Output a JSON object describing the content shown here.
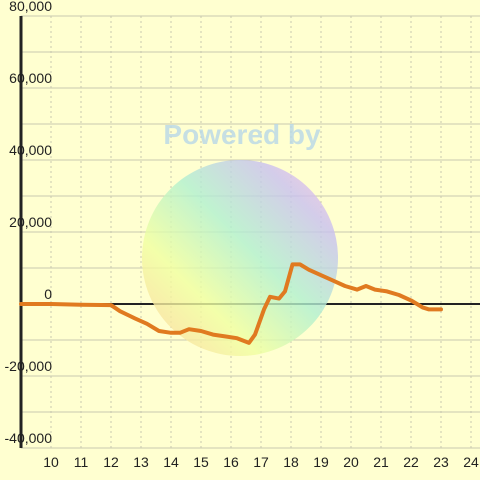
{
  "chart_data": {
    "type": "line",
    "watermark": "Powered by",
    "x": [
      9,
      10,
      11,
      12,
      12.3,
      12.8,
      13.2,
      13.6,
      14,
      14.3,
      14.6,
      15,
      15.4,
      15.8,
      16.2,
      16.6,
      16.8,
      17.1,
      17.3,
      17.6,
      17.8,
      18.05,
      18.3,
      18.6,
      19,
      19.4,
      19.8,
      20.2,
      20.5,
      20.8,
      21.2,
      21.6,
      22,
      22.4,
      22.6,
      23
    ],
    "series": [
      {
        "color": "#e07a20",
        "values": [
          0,
          0,
          -200,
          -300,
          -2000,
          -4000,
          -5500,
          -7500,
          -8000,
          -8000,
          -7000,
          -7500,
          -8500,
          -9000,
          -9500,
          -10800,
          -8500,
          -1500,
          2000,
          1500,
          3500,
          11000,
          11000,
          9500,
          8000,
          6500,
          5000,
          4000,
          5000,
          4000,
          3500,
          2500,
          1000,
          -1000,
          -1500,
          -1500
        ]
      }
    ],
    "xlim": [
      9,
      24.3
    ],
    "xticks": [
      10,
      11,
      12,
      13,
      14,
      15,
      16,
      17,
      18,
      19,
      20,
      21,
      22,
      23,
      24
    ],
    "ylim": [
      -40000,
      80000
    ],
    "yticks": [
      {
        "value": -40000,
        "label": "-40,000"
      },
      {
        "value": -20000,
        "label": "-20,000"
      },
      0,
      {
        "value": 20000,
        "label": "20,000"
      },
      {
        "value": 40000,
        "label": "40,000"
      },
      {
        "value": 60000,
        "label": "60,000"
      },
      {
        "value": 80000,
        "label": "80,000"
      }
    ],
    "y_minor_ticks": [
      -30000,
      -10000,
      10000,
      30000,
      50000,
      70000
    ],
    "grid": true
  }
}
